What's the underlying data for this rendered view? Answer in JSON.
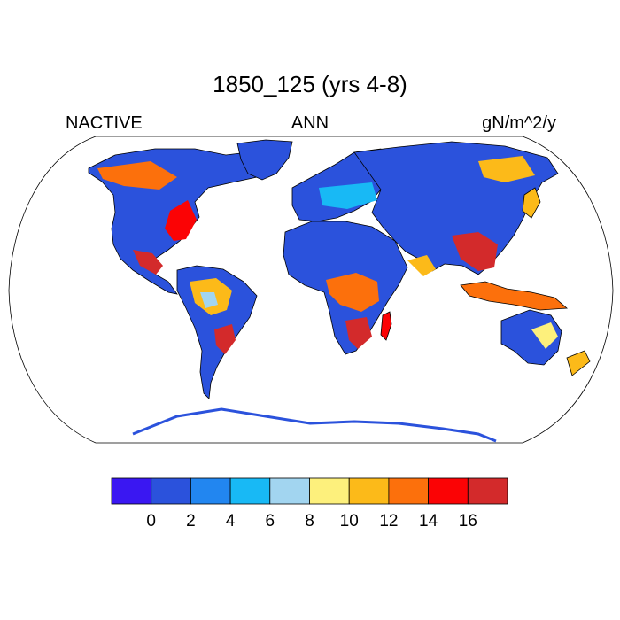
{
  "title": "1850_125 (yrs 4-8)",
  "subtitle_left": "NACTIVE",
  "subtitle_center": "ANN",
  "subtitle_right": "gN/m^2/y",
  "colorbar": {
    "colors": [
      "#3a17f2",
      "#2b52dc",
      "#2286f0",
      "#18b9f5",
      "#a2d5f0",
      "#fdf07c",
      "#fcba19",
      "#fc700c",
      "#fb0305",
      "#d32a2b"
    ],
    "tick_labels": [
      "0",
      "2",
      "4",
      "6",
      "8",
      "10",
      "12",
      "14",
      "16"
    ]
  },
  "map": {
    "projection": "Robinson",
    "land_mask_color": "#ffffff",
    "ocean_color": "#ffffff"
  }
}
